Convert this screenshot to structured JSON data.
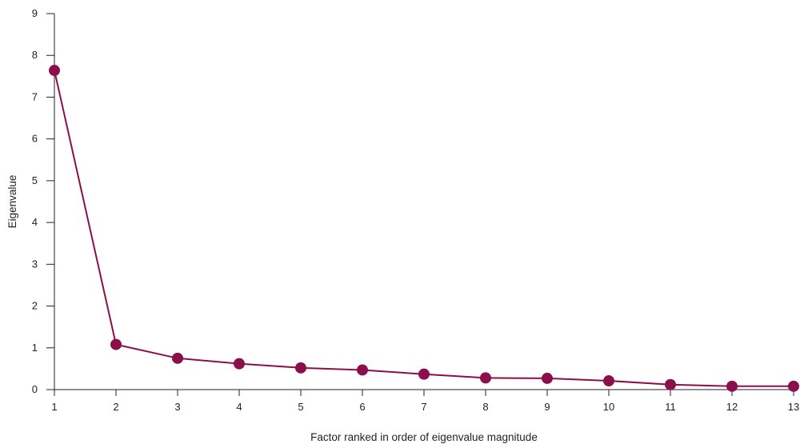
{
  "chart_data": {
    "type": "line",
    "title": "",
    "xlabel": "Factor ranked in order of eigenvalue magnitude",
    "ylabel": "Eigenvalue",
    "x": [
      1,
      2,
      3,
      4,
      5,
      6,
      7,
      8,
      9,
      10,
      11,
      12,
      13
    ],
    "x_ticks": [
      "1",
      "2",
      "3",
      "4",
      "5",
      "6",
      "7",
      "8",
      "9",
      "10",
      "11",
      "12",
      "13"
    ],
    "y_ticks": [
      "0",
      "1",
      "2",
      "3",
      "4",
      "5",
      "6",
      "7",
      "8",
      "9"
    ],
    "xlim": [
      1,
      13
    ],
    "ylim": [
      0,
      9
    ],
    "grid": false,
    "series": [
      {
        "values": [
          7.64,
          1.08,
          0.75,
          0.62,
          0.52,
          0.47,
          0.37,
          0.28,
          0.27,
          0.21,
          0.12,
          0.08,
          0.08
        ]
      }
    ],
    "colors": {
      "series": "#8b0f4a",
      "axis": "#231f20",
      "text": "#231f20"
    }
  }
}
